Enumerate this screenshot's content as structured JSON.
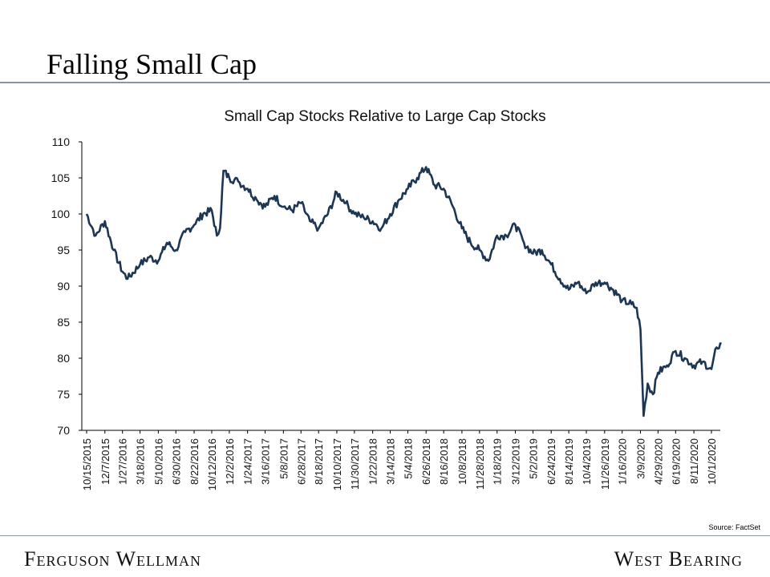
{
  "slide": {
    "title": "Falling Small Cap",
    "source": "Source: FactSet",
    "footer_left": "Ferguson Wellman",
    "footer_right": "West Bearing"
  },
  "colors": {
    "line": "#1c3654",
    "axis": "#000000",
    "rule": "#8a97a3"
  },
  "chart_data": {
    "type": "line",
    "title": "Small Cap Stocks Relative to Large Cap Stocks",
    "xlabel": "",
    "ylabel": "",
    "ylim": [
      70,
      110
    ],
    "yticks": [
      70,
      75,
      80,
      85,
      90,
      95,
      100,
      105,
      110
    ],
    "grid": false,
    "legend": "none",
    "xtick_labels": [
      "10/15/2015",
      "12/7/2015",
      "1/27/2016",
      "3/18/2016",
      "5/10/2016",
      "6/30/2016",
      "8/22/2016",
      "10/12/2016",
      "12/2/2016",
      "1/24/2017",
      "3/16/2017",
      "5/8/2017",
      "6/28/2017",
      "8/18/2017",
      "10/10/2017",
      "11/30/2017",
      "1/22/2018",
      "3/14/2018",
      "5/4/2018",
      "6/26/2018",
      "8/16/2018",
      "10/8/2018",
      "11/28/2018",
      "1/18/2019",
      "3/12/2019",
      "5/2/2019",
      "6/24/2019",
      "8/14/2019",
      "10/4/2019",
      "11/26/2019",
      "1/16/2020",
      "3/9/2020",
      "4/29/2020",
      "6/19/2020",
      "8/11/2020",
      "10/1/2020"
    ],
    "series": [
      {
        "x": [
          "10/15/2015",
          "11/10/2015",
          "12/7/2015",
          "1/1/2016",
          "1/27/2016",
          "2/11/2016",
          "3/18/2016",
          "4/14/2016",
          "5/10/2016",
          "6/4/2016",
          "6/30/2016",
          "7/27/2016",
          "8/22/2016",
          "9/17/2016",
          "10/12/2016",
          "10/27/2016",
          "11/5/2016",
          "11/15/2016",
          "12/2/2016",
          "12/28/2016",
          "1/24/2017",
          "2/19/2017",
          "3/16/2017",
          "4/12/2017",
          "5/8/2017",
          "6/2/2017",
          "6/28/2017",
          "7/24/2017",
          "8/18/2017",
          "9/14/2017",
          "10/10/2017",
          "11/5/2017",
          "11/30/2017",
          "12/27/2017",
          "1/22/2018",
          "2/16/2018",
          "3/14/2018",
          "4/9/2018",
          "5/4/2018",
          "5/31/2018",
          "6/26/2018",
          "7/21/2018",
          "8/16/2018",
          "9/12/2018",
          "10/8/2018",
          "11/2/2018",
          "11/28/2018",
          "12/24/2018",
          "1/18/2019",
          "2/14/2019",
          "3/12/2019",
          "4/6/2019",
          "5/2/2019",
          "5/28/2019",
          "6/24/2019",
          "7/19/2019",
          "8/14/2019",
          "9/9/2019",
          "10/4/2019",
          "10/31/2019",
          "11/26/2019",
          "12/21/2019",
          "1/16/2020",
          "2/12/2020",
          "2/27/2020",
          "3/9/2020",
          "3/18/2020",
          "3/30/2020",
          "4/14/2020",
          "4/29/2020",
          "5/25/2020",
          "6/19/2020",
          "7/15/2020",
          "8/11/2020",
          "9/5/2020",
          "10/1/2020",
          "10/16/2020",
          "10/30/2020"
        ],
        "values": [
          100,
          97,
          99,
          95,
          92,
          91,
          93,
          94,
          93.5,
          96,
          95,
          97.5,
          98.5,
          100,
          100.5,
          97,
          98,
          106,
          105,
          104.5,
          103.5,
          102,
          101,
          102.5,
          101,
          100.5,
          101.5,
          99,
          98,
          100,
          103,
          101.5,
          100,
          99.5,
          99,
          98,
          100,
          102,
          103.5,
          105,
          106.5,
          104,
          103.5,
          101,
          98,
          96,
          95,
          93.5,
          97,
          97,
          98.5,
          96,
          94.5,
          95,
          93,
          91,
          89.5,
          90.5,
          89,
          90.5,
          90.5,
          89.5,
          88,
          87.5,
          87,
          84,
          72,
          76.5,
          75,
          78,
          79,
          81,
          80,
          79,
          79.5,
          78.5,
          81.5,
          82
        ]
      }
    ]
  }
}
